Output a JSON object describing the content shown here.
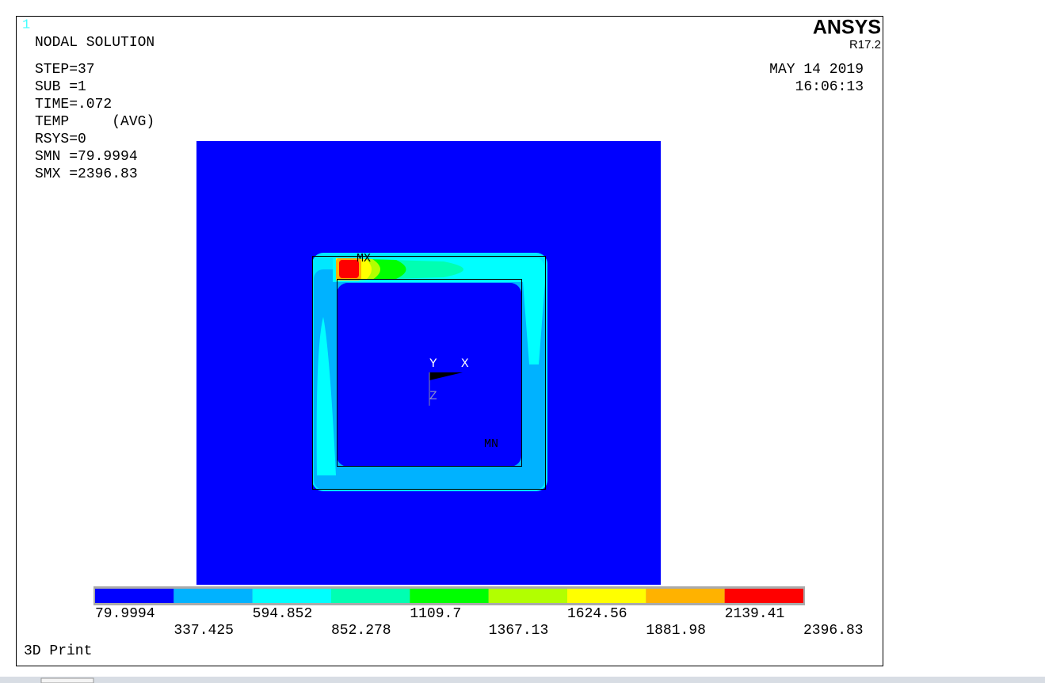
{
  "window_number": "1",
  "header": {
    "title": "NODAL SOLUTION",
    "brand": "ANSYS",
    "release": "R17.2",
    "date": "MAY 14 2019",
    "time": "16:06:13"
  },
  "info": [
    "STEP=37",
    "SUB =1",
    "TIME=.072",
    "TEMP     (AVG)",
    "RSYS=0",
    "SMN =79.9994",
    "SMX =2396.83"
  ],
  "plot": {
    "max_label": "MX",
    "min_label": "MN",
    "axes": [
      "Y",
      "X",
      "Z"
    ]
  },
  "legend": {
    "values": [
      79.9994,
      337.425,
      594.852,
      852.278,
      1109.7,
      1367.13,
      1624.56,
      1881.98,
      2139.41,
      2396.83
    ],
    "colors": [
      "#0000ff",
      "#00b2ff",
      "#00ffff",
      "#00ffb2",
      "#00ff00",
      "#b2ff00",
      "#ffff00",
      "#ffb200",
      "#ff0000"
    ]
  },
  "footer": "3D Print"
}
